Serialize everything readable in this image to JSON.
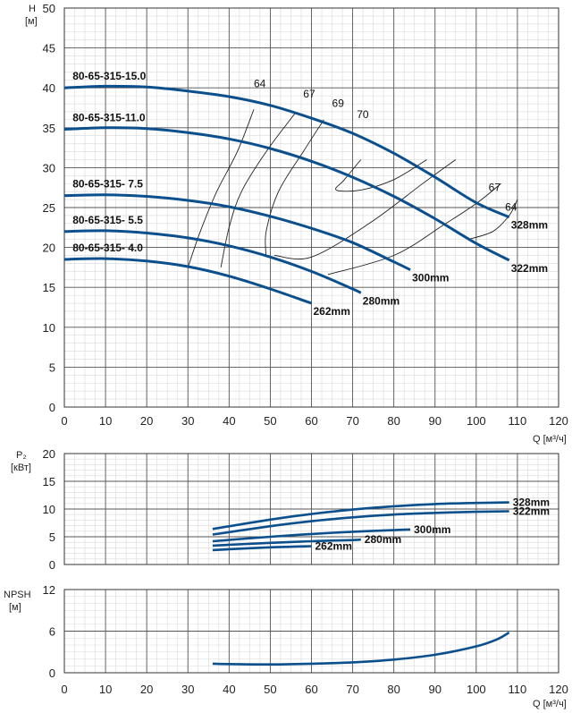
{
  "chart_data": [
    {
      "type": "line",
      "ylabel": "H",
      "yunit": "[м]",
      "xlabel": "Q [м³/ч]",
      "xlim": [
        0,
        120
      ],
      "ylim": [
        0,
        50
      ],
      "xticks": [
        0,
        10,
        20,
        30,
        40,
        50,
        60,
        70,
        80,
        90,
        100,
        110,
        120
      ],
      "yticks": [
        0,
        5,
        10,
        15,
        20,
        25,
        30,
        35,
        40,
        45,
        50
      ],
      "grid": true,
      "series": [
        {
          "name": "80-65-315-15.0",
          "end_label": "328mm",
          "x": [
            0,
            10,
            20,
            30,
            40,
            50,
            60,
            70,
            80,
            90,
            100,
            108
          ],
          "y": [
            40.0,
            40.2,
            40.1,
            39.6,
            38.9,
            37.8,
            36.2,
            34.3,
            31.8,
            28.8,
            25.6,
            23.8
          ]
        },
        {
          "name": "80-65-315-11.0",
          "end_label": "322mm",
          "x": [
            0,
            10,
            20,
            30,
            40,
            50,
            60,
            70,
            80,
            90,
            100,
            108
          ],
          "y": [
            34.8,
            35.0,
            34.9,
            34.4,
            33.6,
            32.4,
            30.8,
            28.8,
            26.4,
            23.6,
            20.5,
            18.4
          ]
        },
        {
          "name": "80-65-315- 7.5",
          "end_label": "300mm",
          "x": [
            0,
            10,
            20,
            30,
            40,
            50,
            60,
            70,
            80,
            84
          ],
          "y": [
            26.5,
            26.6,
            26.4,
            25.9,
            25.1,
            23.9,
            22.4,
            20.6,
            18.2,
            17.2
          ]
        },
        {
          "name": "80-65-315- 5.5",
          "end_label": "280mm",
          "x": [
            0,
            10,
            20,
            30,
            40,
            50,
            60,
            70,
            72
          ],
          "y": [
            22.0,
            22.1,
            21.8,
            21.2,
            20.2,
            18.8,
            17.0,
            14.8,
            14.3
          ]
        },
        {
          "name": "80-65-315- 4.0",
          "end_label": "262mm",
          "x": [
            0,
            10,
            20,
            30,
            40,
            50,
            60
          ],
          "y": [
            18.5,
            18.6,
            18.3,
            17.6,
            16.4,
            14.8,
            13.0
          ]
        }
      ],
      "efficiency_labels": [
        "64",
        "67",
        "69",
        "70",
        "67",
        "64"
      ]
    },
    {
      "type": "line",
      "ylabel": "P₂",
      "yunit": "[кВт]",
      "xlim": [
        0,
        120
      ],
      "ylim": [
        0,
        20
      ],
      "xticks": [
        0,
        10,
        20,
        30,
        40,
        50,
        60,
        70,
        80,
        90,
        100,
        110,
        120
      ],
      "yticks": [
        0,
        5,
        10,
        15,
        20
      ],
      "grid": true,
      "series": [
        {
          "name": "328mm",
          "x": [
            36,
            50,
            60,
            70,
            80,
            90,
            100,
            108
          ],
          "y": [
            6.4,
            8.1,
            9.1,
            9.9,
            10.5,
            10.9,
            11.1,
            11.2
          ]
        },
        {
          "name": "322mm",
          "x": [
            36,
            50,
            60,
            70,
            80,
            90,
            100,
            108
          ],
          "y": [
            5.4,
            6.9,
            7.8,
            8.5,
            9.0,
            9.3,
            9.5,
            9.6
          ]
        },
        {
          "name": "300mm",
          "x": [
            36,
            50,
            60,
            70,
            80,
            84
          ],
          "y": [
            4.2,
            5.0,
            5.5,
            5.9,
            6.2,
            6.3
          ]
        },
        {
          "name": "280mm",
          "x": [
            36,
            50,
            60,
            70,
            72
          ],
          "y": [
            3.4,
            3.9,
            4.2,
            4.4,
            4.5
          ]
        },
        {
          "name": "262mm",
          "x": [
            36,
            50,
            60
          ],
          "y": [
            2.6,
            3.1,
            3.3
          ]
        }
      ]
    },
    {
      "type": "line",
      "ylabel": "NPSH",
      "yunit": "[м]",
      "xlabel": "Q [м³/ч]",
      "xlim": [
        0,
        120
      ],
      "ylim": [
        0,
        12
      ],
      "xticks": [
        0,
        10,
        20,
        30,
        40,
        50,
        60,
        70,
        80,
        90,
        100,
        110,
        120
      ],
      "yticks": [
        0,
        6,
        12
      ],
      "grid": true,
      "series": [
        {
          "name": "",
          "x": [
            36,
            40,
            50,
            60,
            70,
            80,
            90,
            100,
            105,
            108
          ],
          "y": [
            1.3,
            1.25,
            1.2,
            1.3,
            1.5,
            1.9,
            2.6,
            3.8,
            4.8,
            5.8
          ]
        }
      ]
    }
  ]
}
